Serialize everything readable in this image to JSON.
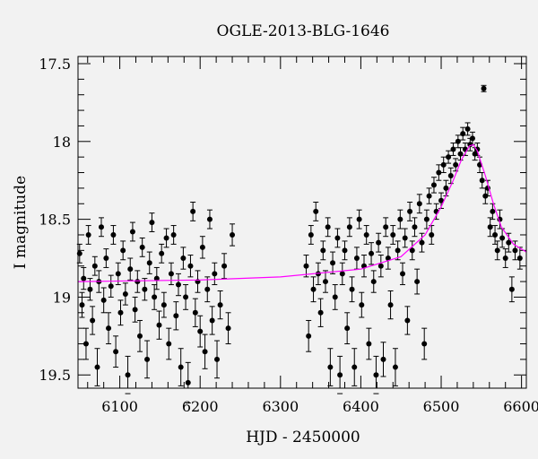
{
  "chart_data": {
    "type": "scatter",
    "title": "OGLE-2013-BLG-1646",
    "xlabel": "HJD - 2450000",
    "ylabel": "I magnitude",
    "xlim": [
      6048,
      6606
    ],
    "ylim": [
      19.585,
      17.454
    ],
    "y_inverted": true,
    "grid": false,
    "x_ticks": [
      6100,
      6200,
      6300,
      6400,
      6500,
      6600
    ],
    "x_tick_labels": [
      "6100",
      "6200",
      "6300",
      "6400",
      "6500",
      "6600"
    ],
    "y_ticks": [
      17.5,
      18,
      18.5,
      19,
      19.5
    ],
    "y_tick_labels": [
      "17.5",
      "18",
      "18.5",
      "19",
      "19.5"
    ],
    "colors": {
      "points": "#000000",
      "model": "#ff00ff",
      "background": "#f2f2f2"
    },
    "series": [
      {
        "name": "data",
        "format": [
          "hjd",
          "mag",
          "err"
        ],
        "points": [
          [
            6050,
            18.72,
            0.06
          ],
          [
            6053,
            19.05,
            0.08
          ],
          [
            6055,
            18.88,
            0.07
          ],
          [
            6058,
            19.3,
            0.1
          ],
          [
            6061,
            18.6,
            0.06
          ],
          [
            6063,
            18.95,
            0.07
          ],
          [
            6066,
            19.15,
            0.09
          ],
          [
            6069,
            18.8,
            0.06
          ],
          [
            6072,
            19.45,
            0.12
          ],
          [
            6074,
            18.9,
            0.07
          ],
          [
            6077,
            18.55,
            0.06
          ],
          [
            6080,
            19.02,
            0.08
          ],
          [
            6083,
            18.75,
            0.06
          ],
          [
            6086,
            19.2,
            0.1
          ],
          [
            6089,
            18.93,
            0.07
          ],
          [
            6092,
            18.6,
            0.06
          ],
          [
            6095,
            19.35,
            0.1
          ],
          [
            6098,
            18.85,
            0.07
          ],
          [
            6101,
            19.1,
            0.08
          ],
          [
            6104,
            18.7,
            0.06
          ],
          [
            6107,
            18.98,
            0.07
          ],
          [
            6110,
            19.5,
            0.12
          ],
          [
            6113,
            18.82,
            0.07
          ],
          [
            6116,
            18.58,
            0.06
          ],
          [
            6119,
            19.08,
            0.08
          ],
          [
            6122,
            18.9,
            0.07
          ],
          [
            6125,
            19.25,
            0.1
          ],
          [
            6128,
            18.68,
            0.06
          ],
          [
            6131,
            18.95,
            0.07
          ],
          [
            6134,
            19.4,
            0.12
          ],
          [
            6137,
            18.78,
            0.07
          ],
          [
            6140,
            18.52,
            0.06
          ],
          [
            6143,
            19.0,
            0.08
          ],
          [
            6146,
            18.88,
            0.07
          ],
          [
            6149,
            19.18,
            0.09
          ],
          [
            6152,
            18.72,
            0.06
          ],
          [
            6155,
            19.05,
            0.08
          ],
          [
            6158,
            18.62,
            0.06
          ],
          [
            6161,
            19.3,
            0.1
          ],
          [
            6164,
            18.85,
            0.07
          ],
          [
            6167,
            18.6,
            0.06
          ],
          [
            6170,
            19.12,
            0.09
          ],
          [
            6173,
            18.92,
            0.07
          ],
          [
            6176,
            19.45,
            0.12
          ],
          [
            6179,
            18.75,
            0.07
          ],
          [
            6182,
            19.0,
            0.08
          ],
          [
            6185,
            19.55,
            0.13
          ],
          [
            6188,
            18.8,
            0.07
          ],
          [
            6191,
            18.45,
            0.06
          ],
          [
            6194,
            19.1,
            0.09
          ],
          [
            6197,
            18.9,
            0.07
          ],
          [
            6200,
            19.22,
            0.1
          ],
          [
            6203,
            18.68,
            0.07
          ],
          [
            6206,
            19.35,
            0.11
          ],
          [
            6209,
            18.95,
            0.08
          ],
          [
            6212,
            18.5,
            0.06
          ],
          [
            6215,
            19.15,
            0.09
          ],
          [
            6218,
            18.85,
            0.07
          ],
          [
            6221,
            19.4,
            0.12
          ],
          [
            6225,
            19.05,
            0.09
          ],
          [
            6230,
            18.8,
            0.08
          ],
          [
            6235,
            19.2,
            0.1
          ],
          [
            6240,
            18.6,
            0.07
          ],
          [
            6332,
            18.8,
            0.07
          ],
          [
            6335,
            19.25,
            0.1
          ],
          [
            6338,
            18.6,
            0.06
          ],
          [
            6341,
            18.95,
            0.08
          ],
          [
            6344,
            18.45,
            0.06
          ],
          [
            6347,
            18.85,
            0.07
          ],
          [
            6350,
            19.1,
            0.09
          ],
          [
            6353,
            18.7,
            0.06
          ],
          [
            6356,
            18.9,
            0.07
          ],
          [
            6359,
            18.55,
            0.06
          ],
          [
            6362,
            19.45,
            0.12
          ],
          [
            6365,
            18.78,
            0.07
          ],
          [
            6368,
            19.0,
            0.08
          ],
          [
            6371,
            18.62,
            0.06
          ],
          [
            6374,
            19.5,
            0.12
          ],
          [
            6377,
            18.85,
            0.07
          ],
          [
            6380,
            18.7,
            0.06
          ],
          [
            6383,
            19.2,
            0.1
          ],
          [
            6386,
            18.55,
            0.06
          ],
          [
            6389,
            18.95,
            0.08
          ],
          [
            6392,
            19.45,
            0.12
          ],
          [
            6395,
            18.75,
            0.07
          ],
          [
            6398,
            18.5,
            0.06
          ],
          [
            6401,
            19.05,
            0.08
          ],
          [
            6404,
            18.8,
            0.07
          ],
          [
            6407,
            18.6,
            0.06
          ],
          [
            6410,
            19.3,
            0.1
          ],
          [
            6413,
            18.72,
            0.07
          ],
          [
            6416,
            18.9,
            0.07
          ],
          [
            6419,
            19.5,
            0.12
          ],
          [
            6422,
            18.65,
            0.06
          ],
          [
            6425,
            18.8,
            0.07
          ],
          [
            6428,
            19.4,
            0.11
          ],
          [
            6431,
            18.55,
            0.06
          ],
          [
            6434,
            18.75,
            0.07
          ],
          [
            6437,
            19.05,
            0.09
          ],
          [
            6440,
            18.6,
            0.06
          ],
          [
            6443,
            19.45,
            0.12
          ],
          [
            6446,
            18.7,
            0.06
          ],
          [
            6449,
            18.5,
            0.06
          ],
          [
            6452,
            18.85,
            0.07
          ],
          [
            6455,
            18.62,
            0.06
          ],
          [
            6458,
            19.15,
            0.09
          ],
          [
            6461,
            18.45,
            0.06
          ],
          [
            6464,
            18.7,
            0.06
          ],
          [
            6467,
            18.55,
            0.06
          ],
          [
            6470,
            18.9,
            0.08
          ],
          [
            6473,
            18.4,
            0.06
          ],
          [
            6476,
            18.65,
            0.06
          ],
          [
            6479,
            19.3,
            0.1
          ],
          [
            6482,
            18.5,
            0.06
          ],
          [
            6485,
            18.35,
            0.05
          ],
          [
            6488,
            18.6,
            0.06
          ],
          [
            6491,
            18.28,
            0.05
          ],
          [
            6494,
            18.45,
            0.05
          ],
          [
            6497,
            18.2,
            0.05
          ],
          [
            6500,
            18.38,
            0.05
          ],
          [
            6503,
            18.15,
            0.05
          ],
          [
            6506,
            18.3,
            0.05
          ],
          [
            6509,
            18.1,
            0.04
          ],
          [
            6512,
            18.22,
            0.05
          ],
          [
            6515,
            18.05,
            0.04
          ],
          [
            6518,
            18.15,
            0.04
          ],
          [
            6521,
            18.0,
            0.04
          ],
          [
            6524,
            18.08,
            0.04
          ],
          [
            6527,
            17.95,
            0.04
          ],
          [
            6530,
            18.05,
            0.04
          ],
          [
            6533,
            17.92,
            0.04
          ],
          [
            6536,
            18.02,
            0.04
          ],
          [
            6539,
            17.98,
            0.04
          ],
          [
            6542,
            18.08,
            0.04
          ],
          [
            6545,
            18.05,
            0.04
          ],
          [
            6548,
            18.15,
            0.05
          ],
          [
            6551,
            18.25,
            0.05
          ],
          [
            6553,
            17.66,
            0.02
          ],
          [
            6555,
            18.35,
            0.05
          ],
          [
            6558,
            18.3,
            0.05
          ],
          [
            6561,
            18.55,
            0.06
          ],
          [
            6564,
            18.45,
            0.05
          ],
          [
            6567,
            18.6,
            0.06
          ],
          [
            6570,
            18.7,
            0.06
          ],
          [
            6573,
            18.5,
            0.06
          ],
          [
            6576,
            18.62,
            0.06
          ],
          [
            6580,
            18.75,
            0.06
          ],
          [
            6584,
            18.65,
            0.06
          ],
          [
            6588,
            18.95,
            0.08
          ],
          [
            6592,
            18.7,
            0.06
          ],
          [
            6598,
            18.75,
            0.07
          ]
        ]
      },
      {
        "name": "model",
        "points": [
          [
            6048,
            18.9
          ],
          [
            6200,
            18.89
          ],
          [
            6300,
            18.87
          ],
          [
            6400,
            18.82
          ],
          [
            6450,
            18.74
          ],
          [
            6480,
            18.6
          ],
          [
            6500,
            18.42
          ],
          [
            6515,
            18.25
          ],
          [
            6525,
            18.12
          ],
          [
            6535,
            18.03
          ],
          [
            6540,
            18.02
          ],
          [
            6545,
            18.06
          ],
          [
            6555,
            18.22
          ],
          [
            6565,
            18.4
          ],
          [
            6575,
            18.55
          ],
          [
            6590,
            18.66
          ],
          [
            6606,
            18.71
          ]
        ]
      }
    ]
  }
}
